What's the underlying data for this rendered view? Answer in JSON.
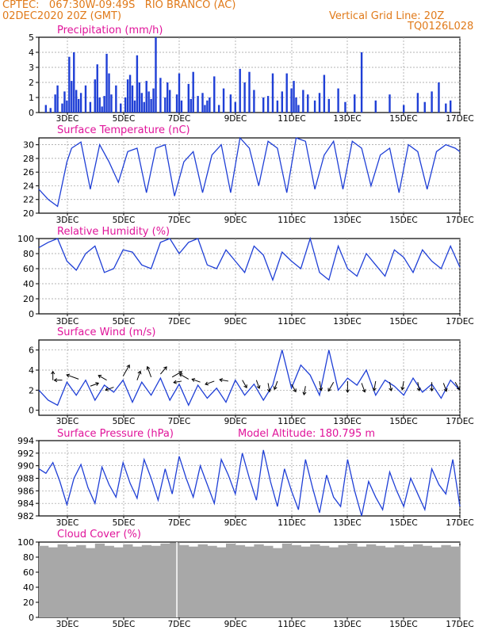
{
  "header": {
    "line1": "CPTEC:   067:30W-09:49S   RIO BRANCO (AC)",
    "line2": "02DEC2020 20Z (GMT)",
    "grid_note": "Vertical Grid Line: 20Z",
    "code": "TQ0126L028"
  },
  "colors": {
    "header": "#e07a1a",
    "title": "#e0149a",
    "series": "#1f3fd6",
    "bars": "#1f3fd6",
    "cloud": "#a8a8a8",
    "wind_arrows": "#000000",
    "grid": "#9a9a9a"
  },
  "chart_data": [
    {
      "id": "precip",
      "type": "bar",
      "title": "Precipitation (mm/h)",
      "ylim": [
        0,
        5
      ],
      "yticks": [
        0,
        1,
        2,
        3,
        4,
        5
      ],
      "xlabels": [
        "3DEC",
        "5DEC",
        "7DEC",
        "9DEC",
        "11DEC",
        "13DEC",
        "15DEC",
        "17DEC"
      ],
      "x_unit": "hours since 02DEC2020 20Z",
      "xlim": [
        0,
        360
      ],
      "grid": true,
      "series": [
        {
          "x": [
            6,
            10,
            14,
            16,
            20,
            22,
            24,
            26,
            28,
            30,
            32,
            34,
            36,
            40,
            44,
            48,
            50,
            52,
            54,
            56,
            58,
            60,
            62,
            66,
            70,
            74,
            76,
            78,
            80,
            82,
            84,
            86,
            88,
            90,
            92,
            94,
            96,
            98,
            100,
            104,
            108,
            110,
            112,
            118,
            120,
            122,
            128,
            130,
            132,
            136,
            140,
            142,
            144,
            146,
            150,
            154,
            158,
            164,
            168,
            172,
            176,
            180,
            184,
            192,
            196,
            200,
            204,
            208,
            212,
            216,
            218,
            220,
            222,
            226,
            230,
            236,
            240,
            244,
            248,
            256,
            262,
            270,
            276,
            288,
            300,
            312,
            324,
            330,
            336,
            342,
            348,
            352
          ],
          "y": [
            0.5,
            0.3,
            1.2,
            1.8,
            0.6,
            1.4,
            0.8,
            3.7,
            2.1,
            4.0,
            1.5,
            0.9,
            1.3,
            1.8,
            0.7,
            2.2,
            3.2,
            1.0,
            0.4,
            1.1,
            3.9,
            2.6,
            1.2,
            1.8,
            0.6,
            1.0,
            2.2,
            2.5,
            1.8,
            0.8,
            3.8,
            2.0,
            1.3,
            0.7,
            2.1,
            1.4,
            0.9,
            1.6,
            5.0,
            2.3,
            1.0,
            2.0,
            1.5,
            1.2,
            2.6,
            0.8,
            1.9,
            0.9,
            2.7,
            1.1,
            1.3,
            0.5,
            0.8,
            1.0,
            2.4,
            0.5,
            1.6,
            1.2,
            0.7,
            2.9,
            2.0,
            2.7,
            1.5,
            1.0,
            1.1,
            2.6,
            0.8,
            1.4,
            2.6,
            1.6,
            2.1,
            1.0,
            0.5,
            1.5,
            1.2,
            0.8,
            1.3,
            2.5,
            0.9,
            1.6,
            0.7,
            1.2,
            4.0,
            0.8,
            1.2,
            0.5,
            1.3,
            0.7,
            1.4,
            2.0,
            0.6,
            0.8
          ]
        }
      ]
    },
    {
      "id": "temp",
      "type": "line",
      "title": "Surface Temperature (nC)",
      "ylim": [
        20,
        31
      ],
      "yticks": [
        20,
        22,
        24,
        26,
        28,
        30
      ],
      "xlabels": [
        "3DEC",
        "5DEC",
        "7DEC",
        "9DEC",
        "11DEC",
        "13DEC",
        "15DEC",
        "17DEC"
      ],
      "x_unit": "hours since 02DEC2020 20Z",
      "xlim": [
        0,
        360
      ],
      "grid": true,
      "series": [
        {
          "x": [
            0,
            8,
            16,
            24,
            28,
            36,
            44,
            52,
            60,
            68,
            76,
            84,
            92,
            100,
            108,
            116,
            124,
            132,
            140,
            148,
            156,
            164,
            172,
            180,
            188,
            196,
            204,
            212,
            220,
            228,
            236,
            244,
            252,
            260,
            268,
            276,
            284,
            292,
            300,
            308,
            316,
            324,
            332,
            340,
            348,
            356,
            360
          ],
          "y": [
            23.5,
            22.0,
            21.0,
            27.5,
            29.5,
            30.4,
            23.5,
            30.0,
            27.5,
            24.5,
            29.0,
            29.5,
            23.0,
            29.5,
            30.0,
            22.5,
            27.5,
            29.0,
            23.0,
            28.5,
            30.0,
            23.0,
            31.0,
            29.5,
            24.0,
            30.5,
            29.5,
            23.0,
            31.0,
            30.5,
            23.5,
            28.5,
            30.5,
            23.5,
            30.5,
            29.5,
            24.0,
            28.5,
            29.5,
            23.0,
            30.0,
            29.0,
            23.5,
            29.0,
            30.0,
            29.5,
            29.0
          ]
        }
      ]
    },
    {
      "id": "rh",
      "type": "line",
      "title": "Relative Humidity (%)",
      "ylim": [
        0,
        100
      ],
      "yticks": [
        0,
        20,
        40,
        60,
        80,
        100
      ],
      "xlabels": [
        "3DEC",
        "5DEC",
        "7DEC",
        "9DEC",
        "11DEC",
        "13DEC",
        "15DEC",
        "17DEC"
      ],
      "x_unit": "hours since 02DEC2020 20Z",
      "xlim": [
        0,
        360
      ],
      "grid": true,
      "series": [
        {
          "x": [
            0,
            8,
            16,
            24,
            32,
            40,
            48,
            56,
            64,
            72,
            80,
            88,
            96,
            104,
            112,
            120,
            128,
            136,
            144,
            152,
            160,
            168,
            176,
            184,
            192,
            200,
            208,
            216,
            224,
            232,
            240,
            248,
            256,
            264,
            272,
            280,
            288,
            296,
            304,
            312,
            320,
            328,
            336,
            344,
            352,
            360
          ],
          "y": [
            88,
            95,
            100,
            70,
            58,
            80,
            90,
            55,
            60,
            85,
            82,
            65,
            60,
            95,
            100,
            80,
            95,
            100,
            65,
            60,
            85,
            70,
            55,
            90,
            78,
            45,
            82,
            70,
            60,
            100,
            55,
            45,
            90,
            60,
            50,
            80,
            65,
            50,
            85,
            75,
            55,
            85,
            70,
            60,
            90,
            62
          ]
        }
      ]
    },
    {
      "id": "wind",
      "type": "line",
      "title": "Surface Wind (m/s)",
      "ylim": [
        -0.5,
        7
      ],
      "yticks": [
        0,
        2,
        4,
        6
      ],
      "xlabels": [
        "3DEC",
        "5DEC",
        "7DEC",
        "9DEC",
        "11DEC",
        "13DEC",
        "15DEC",
        "17DEC"
      ],
      "x_unit": "hours since 02DEC2020 20Z",
      "xlim": [
        0,
        360
      ],
      "grid": true,
      "series": [
        {
          "x": [
            0,
            8,
            16,
            24,
            32,
            40,
            48,
            56,
            64,
            72,
            80,
            88,
            96,
            104,
            112,
            120,
            128,
            136,
            144,
            152,
            160,
            168,
            176,
            184,
            192,
            200,
            208,
            216,
            224,
            232,
            240,
            248,
            256,
            264,
            272,
            280,
            288,
            296,
            304,
            312,
            320,
            328,
            336,
            344,
            352,
            360
          ],
          "y": [
            2.0,
            1.0,
            0.5,
            2.8,
            1.5,
            3.0,
            1.0,
            2.5,
            1.8,
            3.0,
            0.8,
            2.8,
            1.5,
            3.2,
            1.0,
            2.6,
            0.5,
            2.5,
            1.2,
            2.2,
            0.8,
            3.0,
            1.5,
            2.6,
            1.0,
            2.5,
            6.0,
            2.2,
            4.5,
            3.5,
            1.5,
            6.0,
            2.0,
            3.2,
            2.5,
            4.0,
            1.5,
            3.0,
            2.4,
            1.5,
            3.2,
            1.8,
            2.6,
            1.2,
            3.0,
            2.0
          ]
        },
        {
          "name": "wind arrows",
          "x": [
            12,
            20,
            34,
            44,
            58,
            64,
            72,
            84,
            96,
            104,
            114,
            122,
            128,
            138,
            150,
            162,
            174,
            186,
            196,
            204,
            216,
            228,
            240,
            252,
            264,
            276,
            288,
            300,
            312,
            324,
            336,
            346,
            356
          ],
          "y": [
            3.0,
            3.0,
            3.1,
            2.4,
            3.0,
            2.3,
            3.4,
            3.0,
            3.3,
            3.6,
            3.3,
            2.9,
            3.1,
            2.8,
            2.9,
            2.9,
            3.0,
            3.0,
            2.7,
            2.9,
            2.6,
            2.4,
            2.9,
            2.8,
            2.9,
            2.7,
            2.9,
            2.8,
            2.9,
            2.8,
            2.8,
            2.7,
            2.8
          ],
          "angle_deg": [
            -90,
            180,
            200,
            -20,
            -150,
            160,
            -60,
            -70,
            -110,
            -50,
            -30,
            170,
            -150,
            200,
            160,
            190,
            60,
            70,
            80,
            110,
            60,
            100,
            80,
            120,
            90,
            70,
            100,
            80,
            100,
            80,
            90,
            70,
            60
          ],
          "speed": [
            1.0,
            0.8,
            2.0,
            1.0,
            1.2,
            1.0,
            2.0,
            1.2,
            1.6,
            1.2,
            1.6,
            0.8,
            1.4,
            1.0,
            1.2,
            1.0,
            1.0,
            1.0,
            1.0,
            1.0,
            1.0,
            1.0,
            1.2,
            1.4,
            1.6,
            1.2,
            1.2,
            1.0,
            1.0,
            1.0,
            1.0,
            1.0,
            1.0
          ]
        }
      ]
    },
    {
      "id": "press",
      "type": "line",
      "title": "Surface Pressure (hPa)",
      "annotation": "Model Altitude: 180.795 m",
      "ylim": [
        982,
        994
      ],
      "yticks": [
        982,
        984,
        986,
        988,
        990,
        992,
        994
      ],
      "xlabels": [
        "3DEC",
        "5DEC",
        "7DEC",
        "9DEC",
        "11DEC",
        "13DEC",
        "15DEC",
        "17DEC"
      ],
      "x_unit": "hours since 02DEC2020 20Z",
      "xlim": [
        0,
        360
      ],
      "grid": true,
      "series": [
        {
          "x": [
            0,
            6,
            12,
            18,
            24,
            30,
            36,
            42,
            48,
            54,
            60,
            66,
            72,
            78,
            84,
            90,
            96,
            102,
            108,
            114,
            120,
            126,
            132,
            138,
            144,
            150,
            156,
            162,
            168,
            174,
            180,
            186,
            192,
            198,
            204,
            210,
            216,
            222,
            228,
            234,
            240,
            246,
            252,
            258,
            264,
            270,
            276,
            282,
            288,
            294,
            300,
            306,
            312,
            318,
            324,
            330,
            336,
            342,
            348,
            354,
            360
          ],
          "y": [
            989.5,
            988.8,
            990.5,
            987.5,
            983.8,
            988.0,
            990.2,
            986.5,
            984.0,
            989.8,
            987.0,
            985.0,
            990.5,
            987.2,
            984.8,
            991.0,
            988.0,
            984.5,
            989.5,
            985.5,
            991.5,
            988.0,
            985.0,
            990.0,
            987.0,
            984.0,
            991.0,
            988.5,
            985.5,
            992.0,
            988.0,
            984.5,
            992.5,
            987.5,
            983.5,
            989.5,
            986.0,
            983.0,
            991.0,
            986.5,
            982.5,
            988.5,
            985.0,
            983.5,
            991.0,
            986.0,
            982.0,
            987.5,
            985.0,
            983.0,
            989.0,
            986.0,
            983.5,
            988.0,
            985.5,
            983.0,
            989.5,
            987.0,
            985.5,
            991.0,
            983.5
          ]
        }
      ]
    },
    {
      "id": "cloud",
      "type": "bar",
      "title": "Cloud Cover (%)",
      "ylim": [
        0,
        100
      ],
      "yticks": [
        0,
        20,
        40,
        60,
        80,
        100
      ],
      "xlabels": [
        "3DEC",
        "5DEC",
        "7DEC",
        "9DEC",
        "11DEC",
        "13DEC",
        "15DEC",
        "17DEC"
      ],
      "x_unit": "hours since 02DEC2020 20Z",
      "xlim": [
        0,
        360
      ],
      "grid": true,
      "series": [
        {
          "x": [
            0,
            8,
            16,
            24,
            32,
            40,
            48,
            56,
            64,
            72,
            80,
            88,
            96,
            104,
            112,
            120,
            128,
            136,
            144,
            152,
            160,
            168,
            176,
            184,
            192,
            200,
            208,
            216,
            224,
            232,
            240,
            248,
            256,
            264,
            272,
            280,
            288,
            296,
            304,
            312,
            320,
            328,
            336,
            344,
            352
          ],
          "y": [
            95,
            93,
            97,
            94,
            96,
            92,
            98,
            95,
            93,
            97,
            94,
            96,
            95,
            98,
            99,
            96,
            94,
            97,
            95,
            93,
            98,
            96,
            94,
            97,
            95,
            92,
            98,
            96,
            94,
            97,
            95,
            93,
            96,
            98,
            94,
            97,
            95,
            93,
            96,
            94,
            97,
            95,
            93,
            96,
            94
          ]
        }
      ]
    }
  ]
}
